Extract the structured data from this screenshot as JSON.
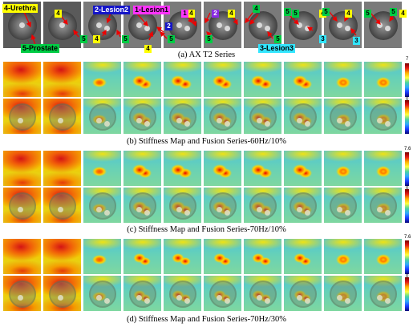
{
  "panel_a": {
    "caption": "(a)  AX T2 Series",
    "labels": {
      "urethra": "4-Urethra",
      "prostate": "5-Prostate",
      "lesion2": "2-Lesion2",
      "lesion1": "1-Lesion1",
      "lesion3": "3-Lesion3"
    },
    "numbers": [
      "4",
      "5",
      "4",
      "5",
      "4",
      "5",
      "2",
      "4",
      "1",
      "5",
      "4",
      "2",
      "4",
      "5",
      "5",
      "5",
      "4",
      "5",
      "3",
      "5",
      "4",
      "3",
      "5",
      "4"
    ],
    "colors": {
      "yellow": "#ffff00",
      "green": "#00cc44",
      "blue": "#1515c8",
      "magenta": "#ff33ff",
      "cyan": "#33e6ff",
      "purple": "#8a2be2",
      "arrow": "#ee0000"
    }
  },
  "panel_b": {
    "caption": "(b)  Stiffness Map and Fusion Series-60Hz/10%",
    "colorbar_max": "7",
    "colorbar_min": "0"
  },
  "panel_c": {
    "caption": "(c)  Stiffness Map and Fusion Series-70Hz/10%",
    "colorbar_max": "7.6",
    "colorbar_min": "0"
  },
  "panel_d": {
    "caption": "(d)  Stiffness Map and Fusion Series-70Hz/30%",
    "colorbar_max": "7.6",
    "colorbar_min": "0"
  }
}
